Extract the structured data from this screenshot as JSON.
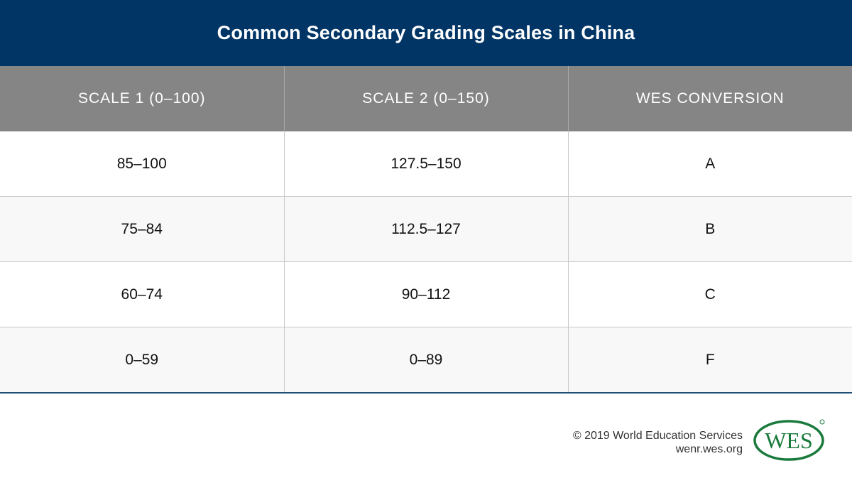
{
  "title": "Common Secondary Grading Scales in China",
  "table": {
    "headers": [
      "SCALE 1 (0–100)",
      "SCALE 2 (0–150)",
      "WES CONVERSION"
    ],
    "rows": [
      [
        "85–100",
        "127.5–150",
        "A"
      ],
      [
        "75–84",
        "112.5–127",
        "B"
      ],
      [
        "60–74",
        "90–112",
        "C"
      ],
      [
        "0–59",
        "0–89",
        "F"
      ]
    ]
  },
  "footer": {
    "copyright": "© 2019 World Education Services",
    "website": "wenr.wes.org"
  },
  "logo": {
    "text": "WES",
    "color": "#1a7a3c"
  },
  "colors": {
    "title_bar": "#003566",
    "header_row": "#858585"
  }
}
